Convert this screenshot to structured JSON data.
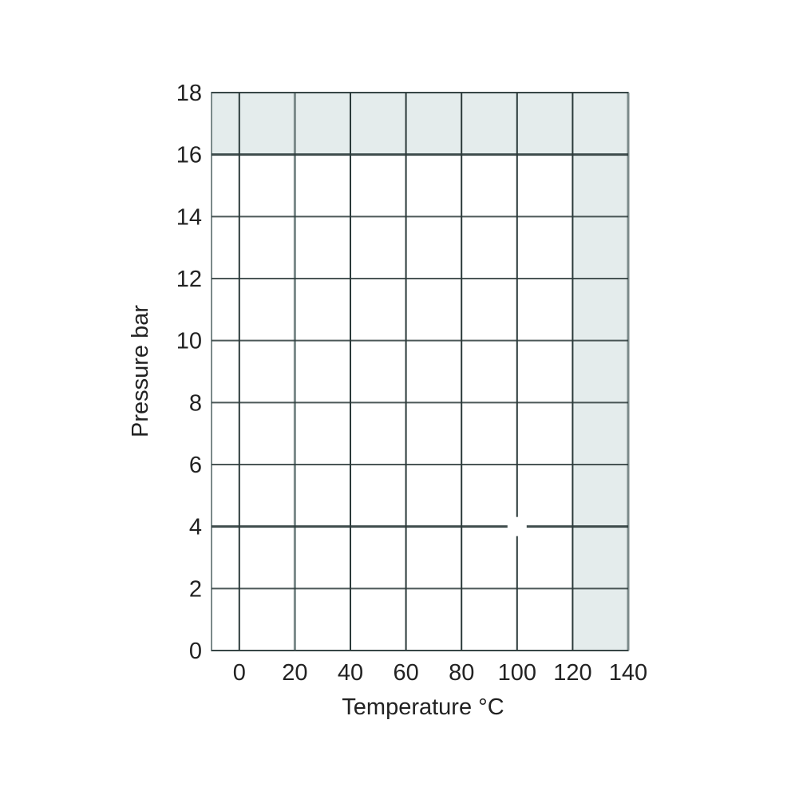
{
  "chart_data": {
    "type": "area",
    "title": "",
    "xlabel": "Temperature °C",
    "ylabel": "Pressure bar",
    "xlim": [
      -10,
      140
    ],
    "ylim": [
      0,
      18
    ],
    "x_ticks": [
      0,
      20,
      40,
      60,
      80,
      100,
      120,
      140
    ],
    "y_ticks": [
      0,
      2,
      4,
      6,
      8,
      10,
      12,
      14,
      16,
      18
    ],
    "grid": true,
    "legend": "none",
    "shaded_regions": [
      {
        "x": [
          -10,
          140
        ],
        "y": [
          16,
          18
        ]
      },
      {
        "x": [
          120,
          140
        ],
        "y": [
          0,
          16
        ]
      }
    ],
    "marker": {
      "x": 100,
      "y": 4
    },
    "colors": {
      "shade": "#e4ecec",
      "grid": "#2b3a3a",
      "grid_soft": "#7b8a8a",
      "text": "#222222"
    }
  }
}
